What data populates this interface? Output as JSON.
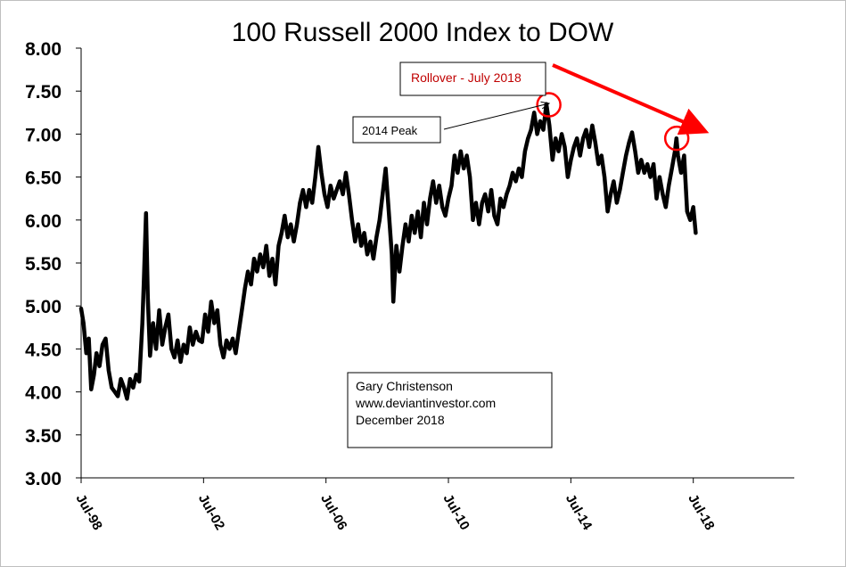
{
  "chart_data": {
    "type": "line",
    "title": "100 Russell 2000 Index to DOW",
    "xlabel": "",
    "ylabel": "",
    "ylim": [
      3.0,
      8.0
    ],
    "yticks": [
      "3.00",
      "3.50",
      "4.00",
      "4.50",
      "5.00",
      "5.50",
      "6.00",
      "6.50",
      "7.00",
      "7.50",
      "8.00"
    ],
    "xticks": [
      {
        "label": "Jul-98",
        "year": 1998.5
      },
      {
        "label": "Jul-02",
        "year": 2002.5
      },
      {
        "label": "Jul-06",
        "year": 2006.5
      },
      {
        "label": "Jul-10",
        "year": 2010.5
      },
      {
        "label": "Jul-14",
        "year": 2014.5
      },
      {
        "label": "Jul-18",
        "year": 2018.5
      }
    ],
    "xlim": [
      1998.5,
      2021.8
    ],
    "grid": false,
    "series": [
      {
        "line_color": "#000000",
        "points": [
          [
            1998.5,
            4.97
          ],
          [
            1998.58,
            4.8
          ],
          [
            1998.67,
            4.45
          ],
          [
            1998.75,
            4.62
          ],
          [
            1998.83,
            4.03
          ],
          [
            1998.92,
            4.2
          ],
          [
            1999.0,
            4.45
          ],
          [
            1999.1,
            4.3
          ],
          [
            1999.2,
            4.55
          ],
          [
            1999.3,
            4.62
          ],
          [
            1999.4,
            4.25
          ],
          [
            1999.5,
            4.05
          ],
          [
            1999.6,
            4.0
          ],
          [
            1999.7,
            3.95
          ],
          [
            1999.8,
            4.15
          ],
          [
            1999.9,
            4.05
          ],
          [
            2000.0,
            3.92
          ],
          [
            2000.1,
            4.15
          ],
          [
            2000.2,
            4.05
          ],
          [
            2000.3,
            4.2
          ],
          [
            2000.4,
            4.12
          ],
          [
            2000.5,
            4.8
          ],
          [
            2000.55,
            5.3
          ],
          [
            2000.62,
            6.08
          ],
          [
            2000.68,
            5.1
          ],
          [
            2000.75,
            4.42
          ],
          [
            2000.85,
            4.8
          ],
          [
            2000.95,
            4.5
          ],
          [
            2001.05,
            4.95
          ],
          [
            2001.15,
            4.55
          ],
          [
            2001.25,
            4.75
          ],
          [
            2001.35,
            4.9
          ],
          [
            2001.45,
            4.5
          ],
          [
            2001.55,
            4.4
          ],
          [
            2001.65,
            4.6
          ],
          [
            2001.75,
            4.35
          ],
          [
            2001.85,
            4.55
          ],
          [
            2001.95,
            4.45
          ],
          [
            2002.05,
            4.75
          ],
          [
            2002.15,
            4.55
          ],
          [
            2002.25,
            4.7
          ],
          [
            2002.35,
            4.6
          ],
          [
            2002.45,
            4.58
          ],
          [
            2002.55,
            4.9
          ],
          [
            2002.65,
            4.7
          ],
          [
            2002.75,
            5.05
          ],
          [
            2002.85,
            4.8
          ],
          [
            2002.95,
            4.95
          ],
          [
            2003.05,
            4.55
          ],
          [
            2003.15,
            4.4
          ],
          [
            2003.25,
            4.6
          ],
          [
            2003.35,
            4.5
          ],
          [
            2003.45,
            4.62
          ],
          [
            2003.55,
            4.45
          ],
          [
            2003.65,
            4.7
          ],
          [
            2003.75,
            4.95
          ],
          [
            2003.85,
            5.2
          ],
          [
            2003.95,
            5.4
          ],
          [
            2004.05,
            5.25
          ],
          [
            2004.15,
            5.55
          ],
          [
            2004.25,
            5.4
          ],
          [
            2004.35,
            5.6
          ],
          [
            2004.45,
            5.45
          ],
          [
            2004.55,
            5.7
          ],
          [
            2004.65,
            5.35
          ],
          [
            2004.75,
            5.55
          ],
          [
            2004.85,
            5.25
          ],
          [
            2004.95,
            5.7
          ],
          [
            2005.05,
            5.85
          ],
          [
            2005.15,
            6.05
          ],
          [
            2005.25,
            5.8
          ],
          [
            2005.35,
            5.95
          ],
          [
            2005.45,
            5.75
          ],
          [
            2005.55,
            5.95
          ],
          [
            2005.65,
            6.2
          ],
          [
            2005.75,
            6.35
          ],
          [
            2005.85,
            6.15
          ],
          [
            2005.95,
            6.35
          ],
          [
            2006.05,
            6.2
          ],
          [
            2006.15,
            6.5
          ],
          [
            2006.25,
            6.85
          ],
          [
            2006.35,
            6.55
          ],
          [
            2006.45,
            6.3
          ],
          [
            2006.55,
            6.15
          ],
          [
            2006.65,
            6.4
          ],
          [
            2006.75,
            6.25
          ],
          [
            2006.85,
            6.35
          ],
          [
            2006.95,
            6.45
          ],
          [
            2007.05,
            6.3
          ],
          [
            2007.15,
            6.55
          ],
          [
            2007.25,
            6.3
          ],
          [
            2007.35,
            6.0
          ],
          [
            2007.45,
            5.75
          ],
          [
            2007.55,
            5.95
          ],
          [
            2007.65,
            5.7
          ],
          [
            2007.75,
            5.85
          ],
          [
            2007.85,
            5.6
          ],
          [
            2007.95,
            5.75
          ],
          [
            2008.05,
            5.55
          ],
          [
            2008.15,
            5.8
          ],
          [
            2008.25,
            6.0
          ],
          [
            2008.35,
            6.3
          ],
          [
            2008.45,
            6.6
          ],
          [
            2008.55,
            6.1
          ],
          [
            2008.65,
            5.6
          ],
          [
            2008.7,
            5.05
          ],
          [
            2008.8,
            5.7
          ],
          [
            2008.9,
            5.4
          ],
          [
            2009.0,
            5.7
          ],
          [
            2009.1,
            5.95
          ],
          [
            2009.2,
            5.75
          ],
          [
            2009.3,
            6.05
          ],
          [
            2009.4,
            5.85
          ],
          [
            2009.5,
            6.1
          ],
          [
            2009.6,
            5.8
          ],
          [
            2009.7,
            6.2
          ],
          [
            2009.8,
            5.95
          ],
          [
            2009.9,
            6.25
          ],
          [
            2010.0,
            6.45
          ],
          [
            2010.1,
            6.2
          ],
          [
            2010.2,
            6.4
          ],
          [
            2010.3,
            6.15
          ],
          [
            2010.4,
            6.05
          ],
          [
            2010.5,
            6.25
          ],
          [
            2010.6,
            6.4
          ],
          [
            2010.7,
            6.75
          ],
          [
            2010.8,
            6.55
          ],
          [
            2010.9,
            6.8
          ],
          [
            2011.0,
            6.6
          ],
          [
            2011.1,
            6.75
          ],
          [
            2011.2,
            6.5
          ],
          [
            2011.3,
            6.0
          ],
          [
            2011.4,
            6.2
          ],
          [
            2011.5,
            5.95
          ],
          [
            2011.6,
            6.2
          ],
          [
            2011.7,
            6.3
          ],
          [
            2011.8,
            6.1
          ],
          [
            2011.9,
            6.35
          ],
          [
            2012.0,
            6.05
          ],
          [
            2012.1,
            5.95
          ],
          [
            2012.2,
            6.25
          ],
          [
            2012.3,
            6.15
          ],
          [
            2012.4,
            6.3
          ],
          [
            2012.5,
            6.4
          ],
          [
            2012.6,
            6.55
          ],
          [
            2012.7,
            6.45
          ],
          [
            2012.8,
            6.6
          ],
          [
            2012.9,
            6.5
          ],
          [
            2013.0,
            6.8
          ],
          [
            2013.1,
            6.95
          ],
          [
            2013.2,
            7.05
          ],
          [
            2013.3,
            7.25
          ],
          [
            2013.4,
            7.0
          ],
          [
            2013.5,
            7.15
          ],
          [
            2013.6,
            7.05
          ],
          [
            2013.7,
            7.35
          ],
          [
            2013.8,
            7.1
          ],
          [
            2013.9,
            6.7
          ],
          [
            2014.0,
            6.95
          ],
          [
            2014.1,
            6.8
          ],
          [
            2014.2,
            7.0
          ],
          [
            2014.3,
            6.85
          ],
          [
            2014.4,
            6.5
          ],
          [
            2014.5,
            6.7
          ],
          [
            2014.6,
            6.85
          ],
          [
            2014.7,
            6.95
          ],
          [
            2014.8,
            6.75
          ],
          [
            2014.9,
            6.95
          ],
          [
            2015.0,
            7.05
          ],
          [
            2015.1,
            6.85
          ],
          [
            2015.2,
            7.1
          ],
          [
            2015.3,
            6.9
          ],
          [
            2015.4,
            6.65
          ],
          [
            2015.5,
            6.75
          ],
          [
            2015.6,
            6.5
          ],
          [
            2015.7,
            6.1
          ],
          [
            2015.8,
            6.3
          ],
          [
            2015.9,
            6.45
          ],
          [
            2016.0,
            6.2
          ],
          [
            2016.1,
            6.35
          ],
          [
            2016.2,
            6.55
          ],
          [
            2016.3,
            6.75
          ],
          [
            2016.4,
            6.9
          ],
          [
            2016.5,
            7.02
          ],
          [
            2016.6,
            6.8
          ],
          [
            2016.7,
            6.55
          ],
          [
            2016.8,
            6.7
          ],
          [
            2016.9,
            6.55
          ],
          [
            2017.0,
            6.65
          ],
          [
            2017.1,
            6.5
          ],
          [
            2017.2,
            6.65
          ],
          [
            2017.3,
            6.25
          ],
          [
            2017.4,
            6.5
          ],
          [
            2017.5,
            6.3
          ],
          [
            2017.6,
            6.15
          ],
          [
            2017.7,
            6.4
          ],
          [
            2017.8,
            6.6
          ],
          [
            2017.9,
            6.8
          ],
          [
            2017.95,
            6.95
          ],
          [
            2018.0,
            6.75
          ],
          [
            2018.1,
            6.55
          ],
          [
            2018.2,
            6.75
          ],
          [
            2018.3,
            6.1
          ],
          [
            2018.4,
            6.0
          ],
          [
            2018.5,
            6.15
          ],
          [
            2018.58,
            5.85
          ]
        ]
      }
    ],
    "annotations": {
      "rollover_label": "Rollover - July 2018",
      "peak_label": "2014 Peak",
      "credit_lines": [
        "Gary Christenson",
        "www.deviantinvestor.com",
        "December 2018"
      ],
      "highlight_points": [
        {
          "year": 2013.78,
          "value": 7.32
        },
        {
          "year": 2017.96,
          "value": 6.93
        }
      ]
    },
    "colors": {
      "line": "#000000",
      "rollover": "#ff0000",
      "rollover_text": "#c00000",
      "axis": "#000000"
    }
  }
}
